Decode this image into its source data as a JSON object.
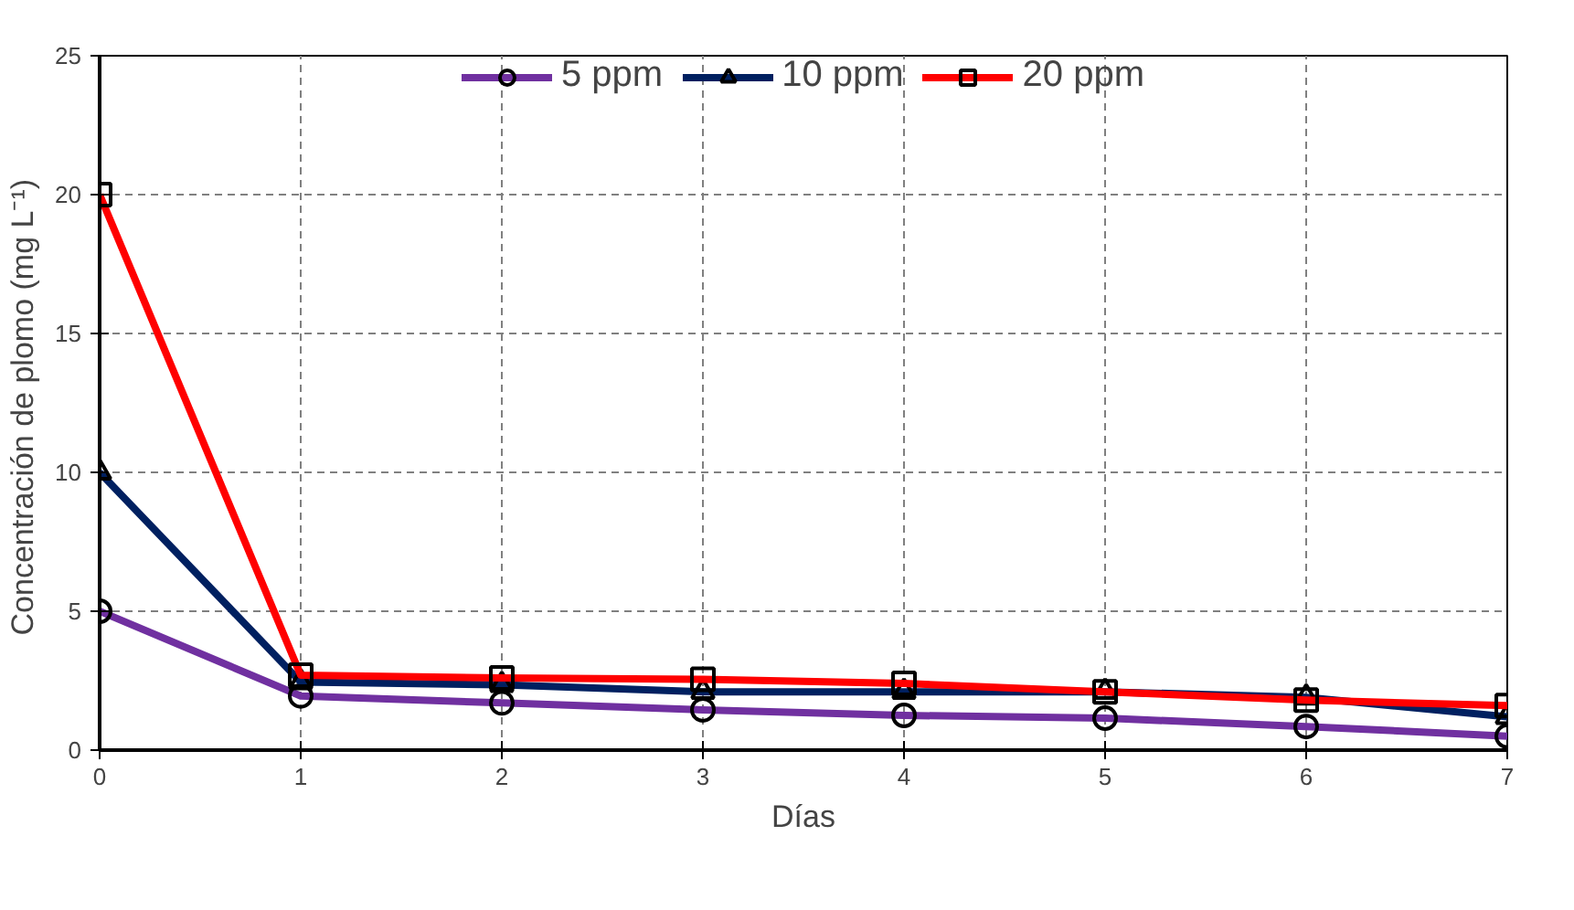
{
  "chart_data": {
    "type": "line",
    "xlabel": "Días",
    "ylabel": "Concentración de  plomo (mg L⁻¹)",
    "x": [
      0,
      1,
      2,
      3,
      4,
      5,
      6,
      7
    ],
    "series": [
      {
        "name": "5 ppm",
        "color": "#7030a0",
        "marker": "circle",
        "values": [
          5,
          1.95,
          1.7,
          1.45,
          1.25,
          1.15,
          0.85,
          0.5
        ]
      },
      {
        "name": "10 ppm",
        "color": "#002060",
        "marker": "triangle",
        "values": [
          10,
          2.45,
          2.35,
          2.1,
          2.1,
          2.1,
          1.9,
          1.2
        ]
      },
      {
        "name": "20 ppm",
        "color": "#ff0000",
        "marker": "square",
        "values": [
          20,
          2.7,
          2.6,
          2.55,
          2.4,
          2.1,
          1.8,
          1.6
        ]
      }
    ],
    "xlim": [
      0,
      7
    ],
    "ylim": [
      0,
      25
    ],
    "xticks": [
      0,
      1,
      2,
      3,
      4,
      5,
      6,
      7
    ],
    "yticks": [
      0,
      5,
      10,
      15,
      20,
      25
    ],
    "grid": true,
    "legend": "top",
    "line_style": "solid"
  }
}
